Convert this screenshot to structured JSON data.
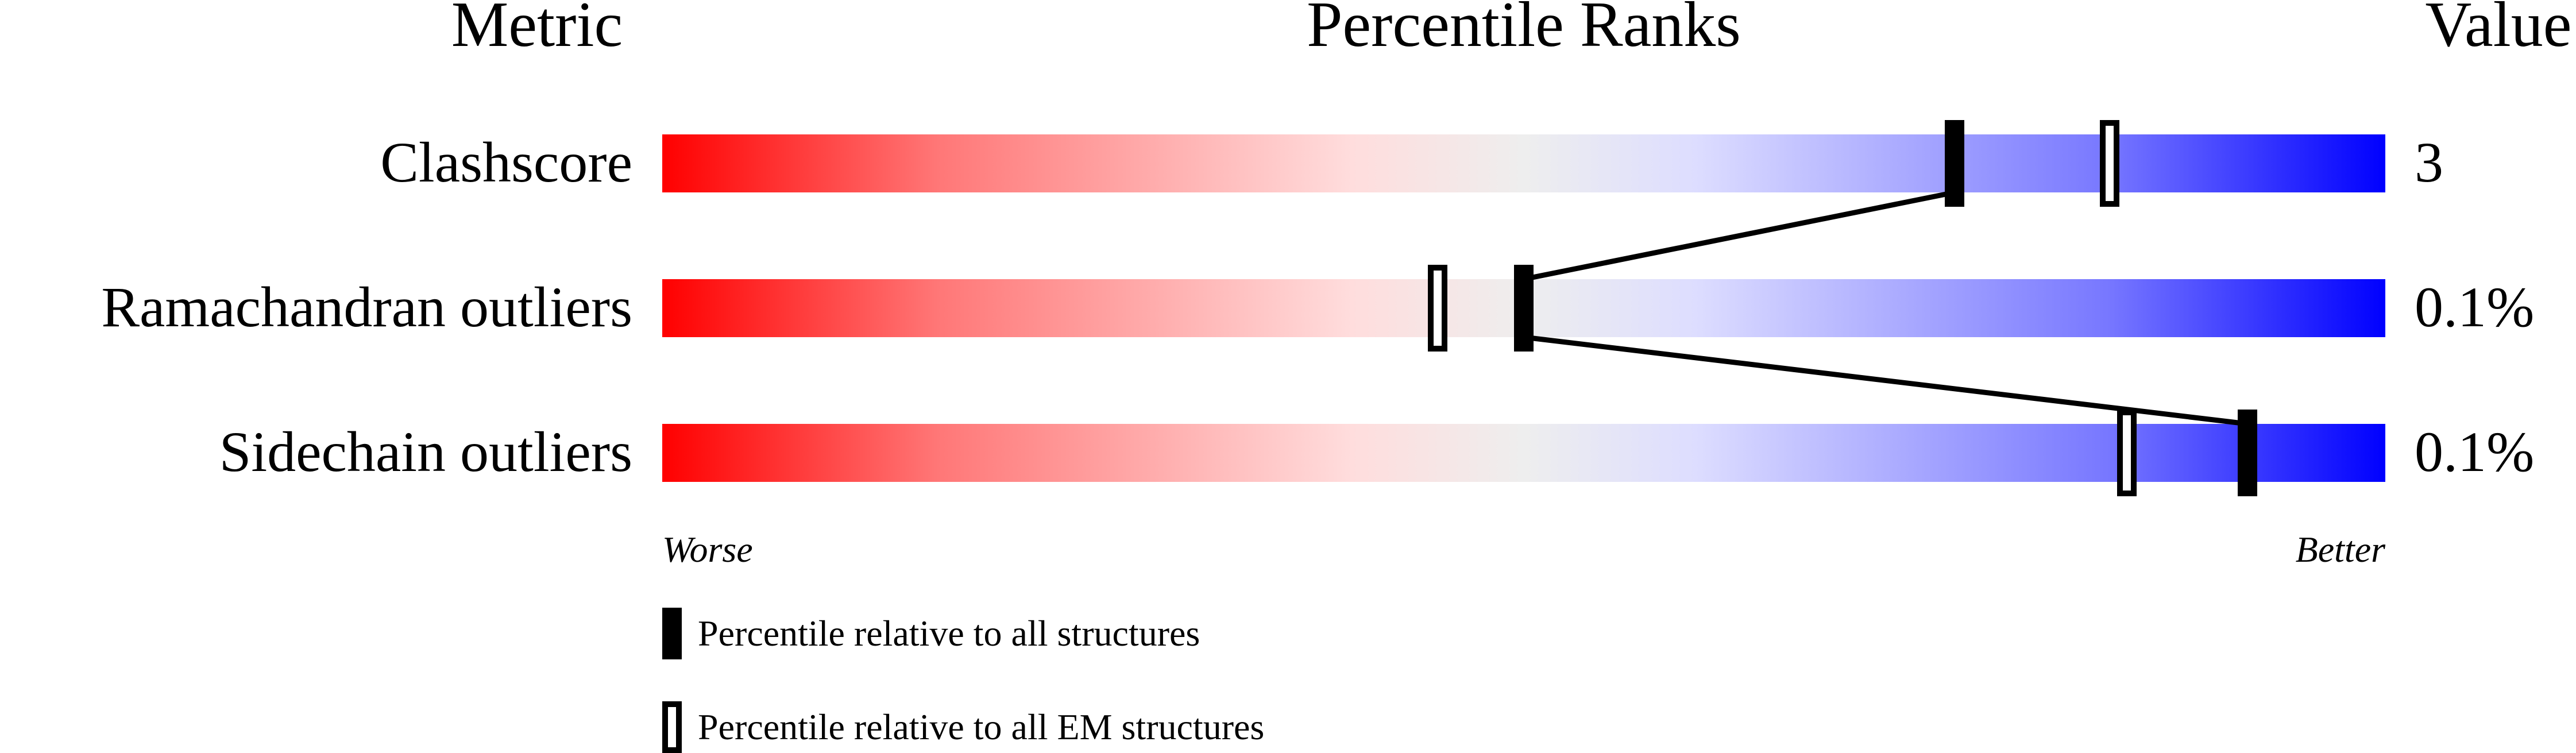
{
  "chart_data": {
    "type": "percentile-bar",
    "headers": {
      "metric": "Metric",
      "ranks": "Percentile Ranks",
      "value": "Value"
    },
    "xlim": [
      0,
      100
    ],
    "axis_labels": {
      "left": "Worse",
      "right": "Better"
    },
    "gradient_colors": [
      "#ff0000",
      "#ff7777",
      "#ffdddd",
      "#eeeeee",
      "#ddddff",
      "#7777ff",
      "#0000ff"
    ],
    "rows": [
      {
        "metric": "Clashscore",
        "value": "3",
        "all_percentile": 75,
        "em_percentile": 84
      },
      {
        "metric": "Ramachandran outliers",
        "value": "0.1%",
        "all_percentile": 50,
        "em_percentile": 45
      },
      {
        "metric": "Sidechain outliers",
        "value": "0.1%",
        "all_percentile": 92,
        "em_percentile": 85
      }
    ],
    "legend": [
      {
        "style": "filled",
        "label": "Percentile relative to all structures"
      },
      {
        "style": "open",
        "label": "Percentile relative to all EM structures"
      }
    ]
  }
}
